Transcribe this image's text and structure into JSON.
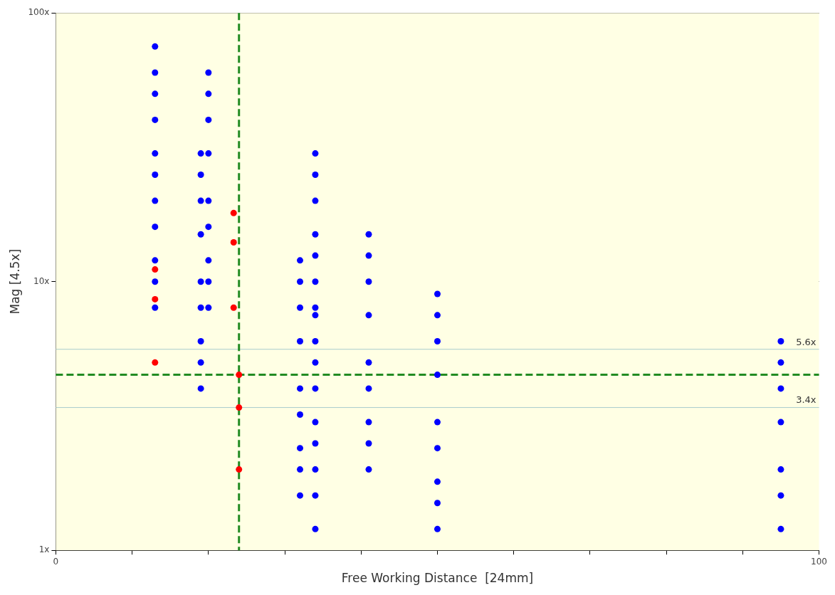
{
  "chart_data": {
    "type": "scatter",
    "xlabel": "Free Working Distance  [24mm]",
    "ylabel": "Mag [4.5x]",
    "xlim": [
      0,
      100
    ],
    "xticks": [
      0,
      {
        "value": 10,
        "label": null
      },
      {
        "value": 20,
        "label": null
      },
      {
        "value": 30,
        "label": null
      },
      {
        "value": 40,
        "label": null
      },
      {
        "value": 50,
        "label": null
      },
      {
        "value": 60,
        "label": null
      },
      {
        "value": 70,
        "label": null
      },
      {
        "value": 80,
        "label": null
      },
      {
        "value": 90,
        "label": null
      },
      100
    ],
    "ylim": [
      1,
      100
    ],
    "yticks": [
      {
        "value": 1,
        "label": "1x"
      },
      {
        "value": 10,
        "label": "10x"
      },
      {
        "value": 100,
        "label": "100x"
      }
    ],
    "log": "y",
    "grid": "y",
    "legend": false,
    "marker": "circle",
    "series": [
      {
        "color": "#ff0000",
        "x": [
          13,
          13,
          13,
          23.3,
          23.3,
          23.3,
          24,
          24,
          24
        ],
        "values": [
          11.1,
          8.6,
          5,
          18,
          14,
          8,
          4.5,
          3.4,
          2
        ]
      },
      {
        "color": "#0000ff",
        "x": [
          13,
          13,
          13,
          13,
          13,
          13,
          13,
          13,
          13,
          13,
          13,
          19,
          19,
          19,
          19,
          19,
          19,
          19,
          19,
          19,
          20,
          20,
          20,
          20,
          20,
          20,
          20,
          20,
          20,
          32,
          32,
          32,
          32,
          32,
          32,
          32,
          32,
          32,
          34,
          34,
          34,
          34,
          34,
          34,
          34,
          34,
          34,
          34,
          34,
          34,
          34,
          34,
          34,
          34,
          41,
          41,
          41,
          41,
          41,
          41,
          41,
          41,
          41,
          50,
          50,
          50,
          50,
          50,
          50,
          50,
          50,
          50,
          95,
          95,
          95,
          95,
          95,
          95,
          95
        ],
        "values": [
          75,
          60,
          50,
          40,
          30,
          25,
          20,
          16,
          12,
          10,
          8,
          30,
          25,
          20,
          15,
          10,
          8,
          6,
          5,
          4,
          60,
          50,
          40,
          30,
          20,
          16,
          12,
          10,
          8,
          12,
          10,
          8,
          6,
          4,
          3.2,
          2.4,
          2,
          1.6,
          30,
          25,
          20,
          15,
          12.5,
          10,
          8,
          7.5,
          6,
          5,
          4,
          3,
          2.5,
          2,
          1.6,
          1.2,
          15,
          12.5,
          10,
          7.5,
          5,
          4,
          3,
          2.5,
          2,
          9,
          7.5,
          6,
          4.5,
          3,
          2.4,
          1.8,
          1.5,
          1.2,
          6,
          5,
          4,
          3,
          2,
          1.6,
          1.2
        ]
      }
    ],
    "ref_lines": [
      {
        "axis": "y",
        "value": 5.6,
        "label": "5.6x",
        "color": "#a8cccc"
      },
      {
        "axis": "y",
        "value": 3.4,
        "label": "3.4x",
        "color": "#a8cccc"
      },
      {
        "axis": "y",
        "value": 4.5,
        "color": "#228b22",
        "line_style": "dashed"
      },
      {
        "axis": "x",
        "value": 24,
        "color": "#228b22",
        "line_style": "dashed"
      }
    ]
  }
}
